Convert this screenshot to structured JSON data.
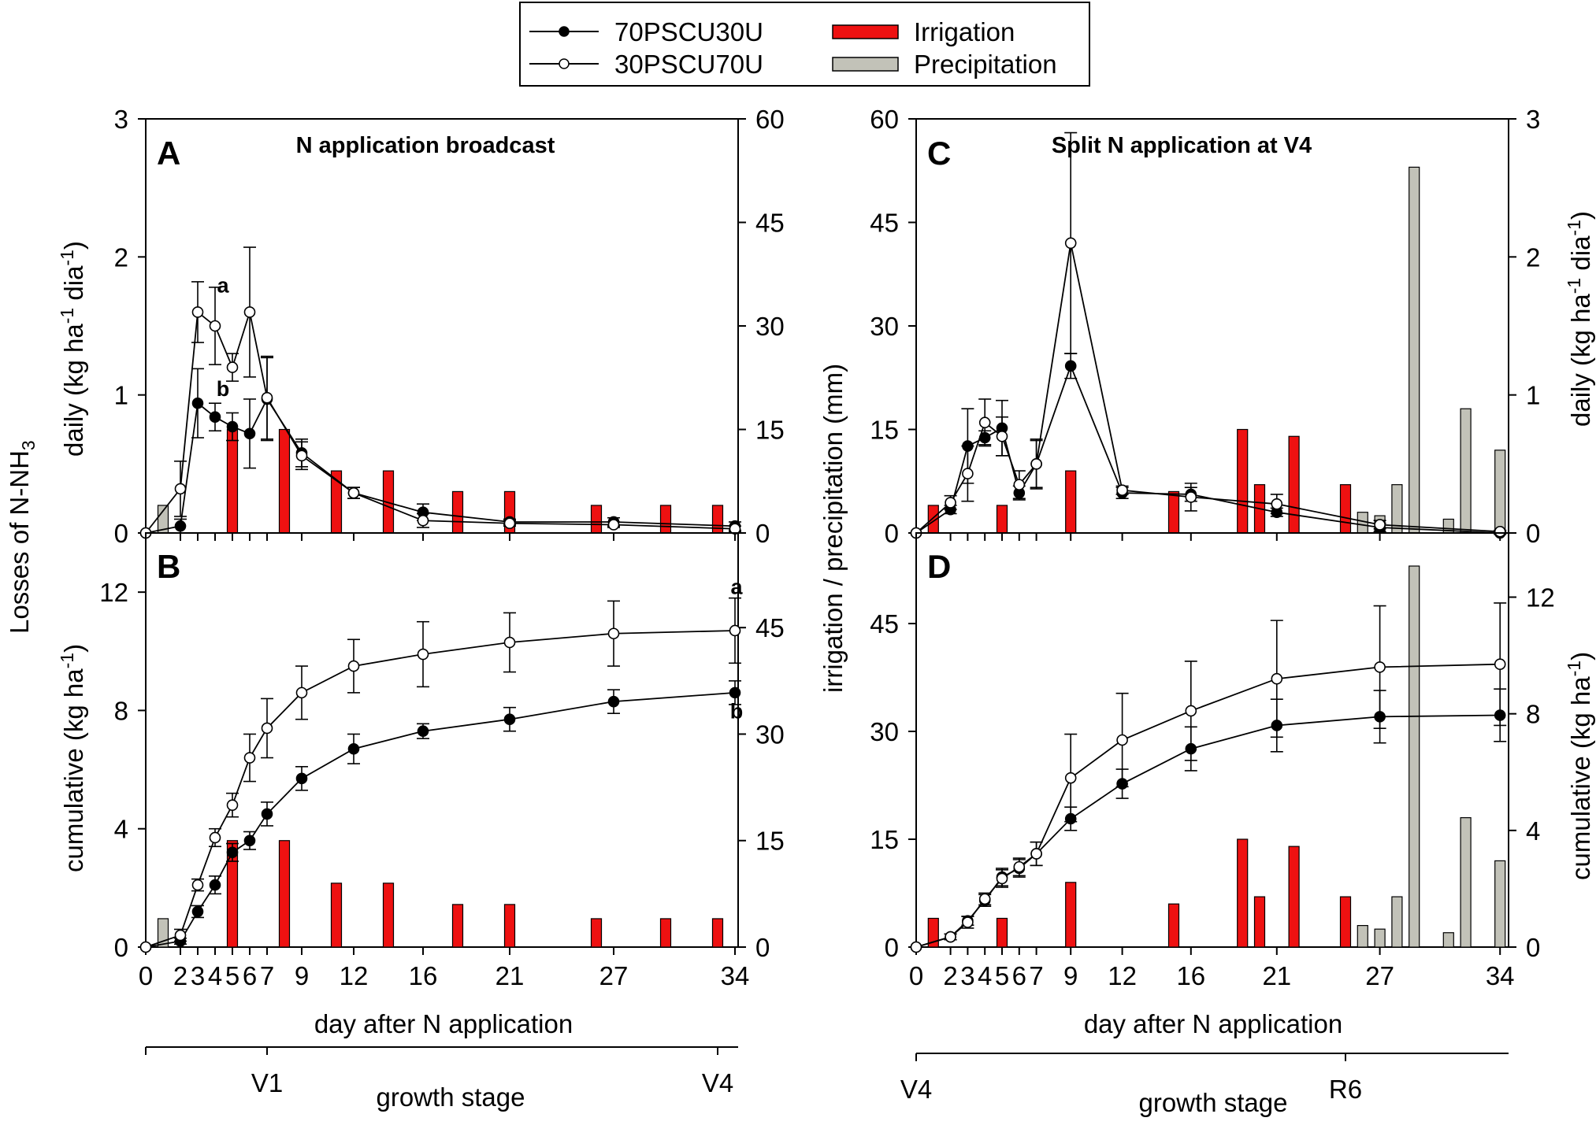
{
  "legend": {
    "items": [
      {
        "label": "70PSCU30U",
        "kind": "line-filled"
      },
      {
        "label": "30PSCU70U",
        "kind": "line-open"
      },
      {
        "label": "Irrigation",
        "kind": "bar",
        "color": "#ee1111"
      },
      {
        "label": "Precipitation",
        "kind": "bar",
        "color": "#c2c2b8"
      }
    ]
  },
  "colors": {
    "irrigation": "#ee1111",
    "precipitation": "#c2c2b8",
    "series_70": "#000000",
    "series_30": "#ffffff"
  },
  "labels": {
    "shared_left_prefix": "Losses of N-NH",
    "shared_left_sub": "3",
    "left_x_label": "day after N application",
    "right_x_label": "day after N application",
    "left_growth_label": "growth stage",
    "right_growth_label": "growth stage",
    "center_y_label": "irrigation / precipitation (mm)",
    "daily_y": {
      "pre": "daily (kg ha",
      "sup1": "-1",
      "mid": " dia",
      "sup2": "-1",
      "post": ")"
    },
    "cum_y": {
      "pre": "cumulative (kg ha",
      "sup1": "-1",
      "post": ")"
    }
  },
  "x_ticks": [
    "0",
    "2",
    "3",
    "4",
    "5",
    "6",
    "7",
    "9",
    "12",
    "16",
    "21",
    "27",
    "34"
  ],
  "x_tick_values": [
    0,
    2,
    3,
    4,
    5,
    6,
    7,
    9,
    12,
    16,
    21,
    27,
    34
  ],
  "growth_stages_left": [
    {
      "label": "V1",
      "day": 7
    },
    {
      "label": "V4",
      "day": 33
    }
  ],
  "growth_stages_right": [
    {
      "label": "V4",
      "day": 0
    },
    {
      "label": "R6",
      "day": 25
    }
  ],
  "chart_data": [
    {
      "panel": "A",
      "title": "N application broadcast",
      "type": "line",
      "ylabel": "daily (kg ha-1 dia-1)",
      "y2label": "irrigation / precipitation (mm)",
      "ylim": [
        0,
        3
      ],
      "yticks": [
        0,
        1,
        2,
        3
      ],
      "y2lim": [
        0,
        60
      ],
      "y2ticks": [
        0,
        15,
        30,
        45,
        60
      ],
      "x": [
        0,
        2,
        3,
        4,
        5,
        6,
        7,
        9,
        12,
        16,
        21,
        27,
        34
      ],
      "series": [
        {
          "name": "70PSCU30U",
          "marker": "filled",
          "values": [
            0,
            0.05,
            0.94,
            0.84,
            0.77,
            0.72,
            0.97,
            0.58,
            0.29,
            0.15,
            0.08,
            0.08,
            0.05
          ],
          "errors": [
            0,
            0.05,
            0.25,
            0.1,
            0.1,
            0.25,
            0.3,
            0.1,
            0.04,
            0.06,
            0.02,
            0.03,
            0.03
          ]
        },
        {
          "name": "30PSCU70U",
          "marker": "open",
          "values": [
            0,
            0.32,
            1.6,
            1.5,
            1.2,
            1.6,
            0.98,
            0.56,
            0.29,
            0.09,
            0.07,
            0.06,
            0.03
          ],
          "errors": [
            0,
            0.2,
            0.22,
            0.28,
            0.1,
            0.47,
            0.3,
            0.1,
            0.04,
            0.05,
            0.02,
            0.02,
            0.02
          ]
        }
      ],
      "irrigation": [
        {
          "x": 5,
          "y": 15
        },
        {
          "x": 8,
          "y": 15
        },
        {
          "x": 11,
          "y": 9
        },
        {
          "x": 14,
          "y": 9
        },
        {
          "x": 18,
          "y": 6
        },
        {
          "x": 21,
          "y": 6
        },
        {
          "x": 26,
          "y": 4
        },
        {
          "x": 30,
          "y": 4
        },
        {
          "x": 33,
          "y": 4
        }
      ],
      "precipitation": [
        {
          "x": 1,
          "y": 4
        }
      ],
      "annotations": [
        {
          "text": "a",
          "x": 4,
          "y": 1.8
        },
        {
          "text": "b",
          "x": 4,
          "y": 1.05
        }
      ]
    },
    {
      "panel": "B",
      "type": "line",
      "ylabel": "cumulative (kg ha-1)",
      "y2label": "irrigation / precipitation (mm)",
      "ylim": [
        0,
        14
      ],
      "yticks": [
        0,
        4,
        8,
        12
      ],
      "y2lim": [
        0,
        58.33
      ],
      "y2ticks": [
        0,
        15,
        30,
        45
      ],
      "x": [
        0,
        2,
        3,
        4,
        5,
        6,
        7,
        9,
        12,
        16,
        21,
        27,
        34
      ],
      "series": [
        {
          "name": "70PSCU30U",
          "marker": "filled",
          "values": [
            0,
            0.2,
            1.2,
            2.1,
            3.2,
            3.6,
            4.5,
            5.7,
            6.7,
            7.3,
            7.7,
            8.3,
            8.6
          ],
          "errors": [
            0,
            0.1,
            0.2,
            0.3,
            0.3,
            0.3,
            0.4,
            0.4,
            0.5,
            0.25,
            0.4,
            0.4,
            0.4
          ]
        },
        {
          "name": "30PSCU70U",
          "marker": "open",
          "values": [
            0,
            0.4,
            2.1,
            3.7,
            4.8,
            6.4,
            7.4,
            8.6,
            9.5,
            9.9,
            10.3,
            10.6,
            10.7
          ],
          "errors": [
            0,
            0.2,
            0.2,
            0.3,
            0.4,
            0.8,
            1.0,
            0.9,
            0.9,
            1.1,
            1.0,
            1.1,
            1.1
          ]
        }
      ],
      "irrigation": [
        {
          "x": 5,
          "y": 15
        },
        {
          "x": 8,
          "y": 15
        },
        {
          "x": 11,
          "y": 9
        },
        {
          "x": 14,
          "y": 9
        },
        {
          "x": 18,
          "y": 6
        },
        {
          "x": 21,
          "y": 6
        },
        {
          "x": 26,
          "y": 4
        },
        {
          "x": 30,
          "y": 4
        },
        {
          "x": 33,
          "y": 4
        }
      ],
      "precipitation": [
        {
          "x": 1,
          "y": 4
        }
      ],
      "annotations": [
        {
          "text": "a",
          "x": 34,
          "y": 12.2
        },
        {
          "text": "b",
          "x": 34,
          "y": 8.0
        }
      ]
    },
    {
      "panel": "C",
      "title": "Split N application at V4",
      "type": "line",
      "ylabel": "daily (kg ha-1 dia-1)",
      "y2label": "irrigation / precipitation (mm)",
      "ylim": [
        0,
        3
      ],
      "yticks": [
        0,
        1,
        2,
        3
      ],
      "y2lim": [
        0,
        60
      ],
      "y2ticks": [
        0,
        15,
        30,
        45,
        60
      ],
      "x": [
        0,
        2,
        3,
        4,
        5,
        6,
        7,
        9,
        12,
        16,
        21,
        27,
        34
      ],
      "series": [
        {
          "name": "70PSCU30U",
          "marker": "filled",
          "values": [
            0,
            0.17,
            0.63,
            0.69,
            0.76,
            0.29,
            0.5,
            1.21,
            0.29,
            0.28,
            0.15,
            0.04,
            0.0
          ],
          "errors": [
            0,
            0.03,
            0.27,
            0.05,
            0.2,
            0.05,
            0.17,
            0.09,
            0.04,
            0.05,
            0.03,
            0.03,
            0.01
          ]
        },
        {
          "name": "30PSCU70U",
          "marker": "open",
          "values": [
            0,
            0.22,
            0.43,
            0.8,
            0.7,
            0.35,
            0.5,
            2.1,
            0.31,
            0.26,
            0.21,
            0.06,
            0.01
          ],
          "errors": [
            0,
            0.05,
            0.2,
            0.17,
            0.14,
            0.1,
            0.18,
            0.8,
            0.03,
            0.1,
            0.07,
            0.03,
            0.01
          ]
        }
      ],
      "irrigation": [
        {
          "x": 1,
          "y": 4
        },
        {
          "x": 5,
          "y": 4
        },
        {
          "x": 9,
          "y": 9
        },
        {
          "x": 15,
          "y": 6
        },
        {
          "x": 19,
          "y": 15
        },
        {
          "x": 20,
          "y": 7
        },
        {
          "x": 22,
          "y": 14
        },
        {
          "x": 25,
          "y": 7
        }
      ],
      "precipitation": [
        {
          "x": 26,
          "y": 3
        },
        {
          "x": 27,
          "y": 2.5
        },
        {
          "x": 28,
          "y": 7
        },
        {
          "x": 29,
          "y": 53
        },
        {
          "x": 31,
          "y": 2
        },
        {
          "x": 32,
          "y": 18
        },
        {
          "x": 34,
          "y": 12
        }
      ]
    },
    {
      "panel": "D",
      "type": "line",
      "ylabel": "cumulative (kg ha-1)",
      "y2label": "irrigation / precipitation (mm)",
      "ylim": [
        0,
        14.2
      ],
      "yticks": [
        0,
        4,
        8,
        12
      ],
      "y2lim": [
        0,
        57.6
      ],
      "y2ticks": [
        0,
        15,
        30,
        45
      ],
      "x": [
        0,
        2,
        3,
        4,
        5,
        6,
        7,
        9,
        12,
        16,
        21,
        27,
        34
      ],
      "series": [
        {
          "name": "70PSCU30U",
          "marker": "filled",
          "values": [
            0,
            0.35,
            0.9,
            1.6,
            2.4,
            2.7,
            3.2,
            4.4,
            5.6,
            6.8,
            7.6,
            7.9,
            7.95
          ],
          "errors": [
            0,
            0.1,
            0.15,
            0.2,
            0.3,
            0.3,
            0.4,
            0.4,
            0.5,
            0.75,
            0.9,
            0.9,
            0.9
          ]
        },
        {
          "name": "30PSCU70U",
          "marker": "open",
          "values": [
            0,
            0.35,
            0.85,
            1.65,
            2.35,
            2.75,
            3.2,
            5.8,
            7.1,
            8.1,
            9.2,
            9.6,
            9.7
          ],
          "errors": [
            0,
            0.1,
            0.2,
            0.2,
            0.3,
            0.3,
            0.4,
            1.5,
            1.6,
            1.7,
            2.0,
            2.1,
            2.1
          ]
        }
      ],
      "irrigation": [
        {
          "x": 1,
          "y": 4
        },
        {
          "x": 5,
          "y": 4
        },
        {
          "x": 9,
          "y": 9
        },
        {
          "x": 15,
          "y": 6
        },
        {
          "x": 19,
          "y": 15
        },
        {
          "x": 20,
          "y": 7
        },
        {
          "x": 22,
          "y": 14
        },
        {
          "x": 25,
          "y": 7
        }
      ],
      "precipitation": [
        {
          "x": 26,
          "y": 3
        },
        {
          "x": 27,
          "y": 2.5
        },
        {
          "x": 28,
          "y": 7
        },
        {
          "x": 29,
          "y": 53
        },
        {
          "x": 31,
          "y": 2
        },
        {
          "x": 32,
          "y": 18
        },
        {
          "x": 34,
          "y": 12
        }
      ]
    }
  ]
}
